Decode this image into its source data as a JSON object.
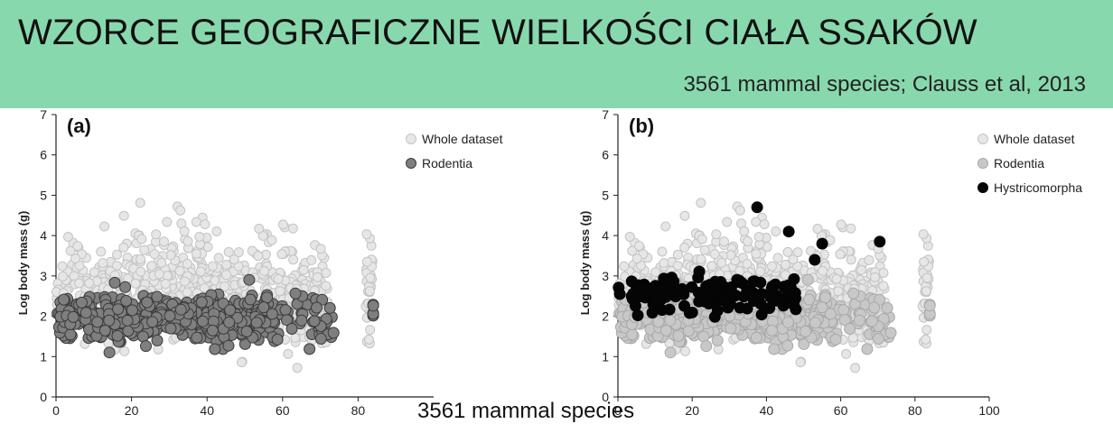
{
  "header": {
    "title": "WZORCE GEOGRAFICZNE WIELKOŚCI CIAŁA SSAKÓW",
    "subtitle": "3561 mammal species; Clauss et al, 2013"
  },
  "caption": "3561 mammal species",
  "colors": {
    "banner": "#88d8ae",
    "whole": "#e6e6e6",
    "whole_stroke": "#c4c4c4",
    "rodentia_a": "#7f7f7f",
    "rodentia_a_stroke": "#3a3a3a",
    "rodentia_b": "#c8c8c8",
    "rodentia_b_stroke": "#a8a8a8",
    "hystricomorpha": "#050505"
  },
  "chart_data": [
    {
      "type": "scatter",
      "panel_label": "(a)",
      "ylabel": "Log body mass (g)",
      "xlim": [
        0,
        100
      ],
      "ylim": [
        0,
        7
      ],
      "y_ticks": [
        0,
        1,
        2,
        3,
        4,
        5,
        6,
        7
      ],
      "x_ticks": [
        0,
        20,
        40,
        60,
        80
      ],
      "legend_position": "top-right",
      "series": [
        {
          "name": "Whole dataset",
          "style": "whole",
          "count": 3561
        },
        {
          "name": "Rodentia",
          "style": "rodentia_a"
        }
      ]
    },
    {
      "type": "scatter",
      "panel_label": "(b)",
      "ylabel": "Log body mass (g)",
      "xlim": [
        0,
        100
      ],
      "ylim": [
        0,
        7
      ],
      "y_ticks": [
        0,
        1,
        2,
        3,
        4,
        5,
        6,
        7
      ],
      "x_ticks": [
        0,
        20,
        40,
        60,
        80,
        100
      ],
      "legend_position": "top-right",
      "series": [
        {
          "name": "Whole dataset",
          "style": "whole",
          "count": 3561
        },
        {
          "name": "Rodentia",
          "style": "rodentia_b"
        },
        {
          "name": "Hystricomorpha",
          "style": "hystricomorpha"
        }
      ]
    }
  ]
}
